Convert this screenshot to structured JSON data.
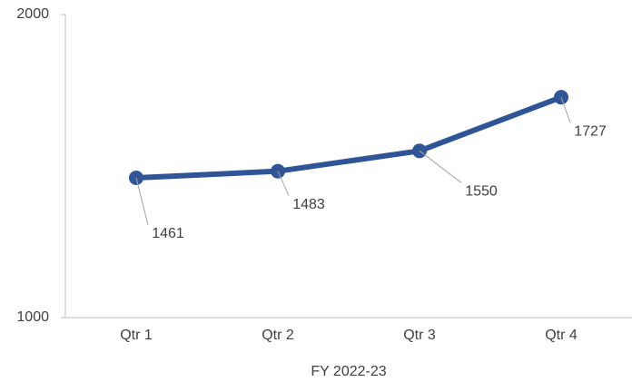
{
  "chart_data": {
    "type": "line",
    "x_label": "FY 2022-23",
    "categories": [
      "Qtr 1",
      "Qtr 2",
      "Qtr 3",
      "Qtr 4"
    ],
    "values": [
      1461,
      1483,
      1550,
      1727
    ],
    "color": "#2f5597",
    "ylim": [
      1000,
      2000
    ],
    "yticks": [
      1000,
      2000
    ],
    "grid": false
  }
}
